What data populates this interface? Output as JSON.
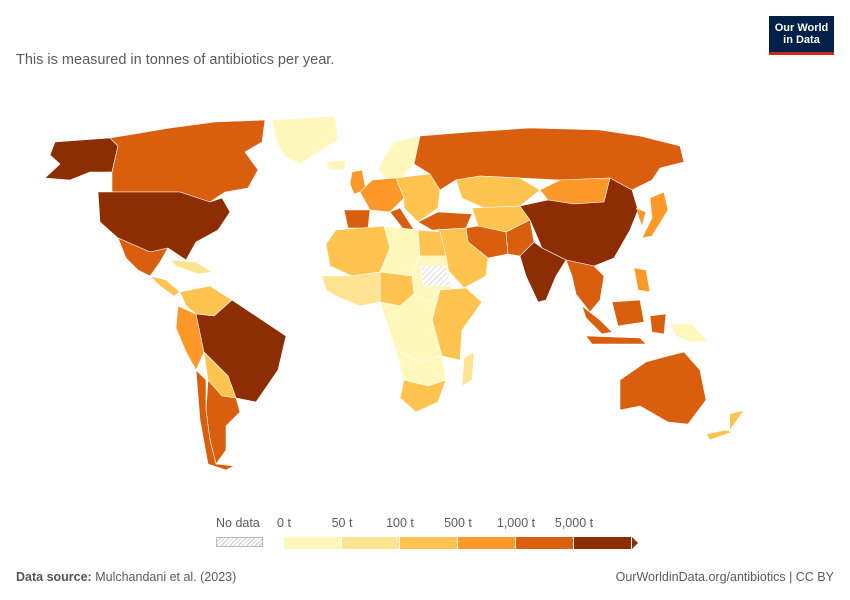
{
  "subtitle": "This is measured in tonnes of antibiotics per year.",
  "logo": {
    "line1": "Our World",
    "line2": "in Data"
  },
  "legend": {
    "no_data_label": "No data",
    "bins": [
      {
        "label": "0 t",
        "color": "#fff7bc"
      },
      {
        "label": "50 t",
        "color": "#fee391"
      },
      {
        "label": "100 t",
        "color": "#fec44f"
      },
      {
        "label": "500 t",
        "color": "#fe9929"
      },
      {
        "label": "1,000 t",
        "color": "#d95f0e"
      },
      {
        "label": "5,000 t",
        "color": "#8c2d04"
      }
    ]
  },
  "footer": {
    "source_label": "Data source:",
    "source_value": "Mulchandani et al. (2023)",
    "link": "OurWorldinData.org/antibiotics | CC BY"
  },
  "regions": [
    {
      "name": "usa",
      "color": "#8c2d04"
    },
    {
      "name": "alaska",
      "color": "#8c2d04"
    },
    {
      "name": "canada",
      "color": "#d95f0e"
    },
    {
      "name": "greenland",
      "color": "#fff7bc"
    },
    {
      "name": "mexico",
      "color": "#d95f0e"
    },
    {
      "name": "central-america",
      "color": "#fec44f"
    },
    {
      "name": "caribbean",
      "color": "#fee391"
    },
    {
      "name": "colombia-venezuela",
      "color": "#fec44f"
    },
    {
      "name": "peru-ecuador",
      "color": "#fe9929"
    },
    {
      "name": "brazil",
      "color": "#8c2d04"
    },
    {
      "name": "bolivia-paraguay",
      "color": "#fec44f"
    },
    {
      "name": "argentina",
      "color": "#d95f0e"
    },
    {
      "name": "chile",
      "color": "#d95f0e"
    },
    {
      "name": "iceland",
      "color": "#fff7bc"
    },
    {
      "name": "uk",
      "color": "#fe9929"
    },
    {
      "name": "scandinavia",
      "color": "#fff7bc"
    },
    {
      "name": "western-europe",
      "color": "#fe9929"
    },
    {
      "name": "iberia",
      "color": "#d95f0e"
    },
    {
      "name": "italy",
      "color": "#d95f0e"
    },
    {
      "name": "eastern-europe",
      "color": "#fec44f"
    },
    {
      "name": "russia",
      "color": "#d95f0e"
    },
    {
      "name": "turkey",
      "color": "#d95f0e"
    },
    {
      "name": "kazakhstan",
      "color": "#fec44f"
    },
    {
      "name": "central-asia",
      "color": "#fec44f"
    },
    {
      "name": "iran",
      "color": "#d95f0e"
    },
    {
      "name": "arabia",
      "color": "#fec44f"
    },
    {
      "name": "mongolia",
      "color": "#fe9929"
    },
    {
      "name": "china",
      "color": "#8c2d04"
    },
    {
      "name": "india",
      "color": "#8c2d04"
    },
    {
      "name": "pakistan",
      "color": "#d95f0e"
    },
    {
      "name": "southeast-asia",
      "color": "#d95f0e"
    },
    {
      "name": "korea-japan",
      "color": "#fe9929"
    },
    {
      "name": "indonesia",
      "color": "#d95f0e"
    },
    {
      "name": "philippines",
      "color": "#fe9929"
    },
    {
      "name": "png",
      "color": "#fff7bc"
    },
    {
      "name": "australia",
      "color": "#d95f0e"
    },
    {
      "name": "new-zealand",
      "color": "#fec44f"
    },
    {
      "name": "north-africa",
      "color": "#fec44f"
    },
    {
      "name": "libya-sahara",
      "color": "#fff7bc"
    },
    {
      "name": "egypt",
      "color": "#fec44f"
    },
    {
      "name": "sudan",
      "color": "#fff7bc"
    },
    {
      "name": "west-africa",
      "color": "#fee391"
    },
    {
      "name": "nigeria",
      "color": "#fec44f"
    },
    {
      "name": "central-africa",
      "color": "#fff7bc"
    },
    {
      "name": "east-africa",
      "color": "#fec44f"
    },
    {
      "name": "southern-africa",
      "color": "#fff7bc"
    },
    {
      "name": "south-africa",
      "color": "#fec44f"
    },
    {
      "name": "madagascar",
      "color": "#fee391"
    },
    {
      "name": "no-data-region",
      "color": "nodata"
    }
  ]
}
